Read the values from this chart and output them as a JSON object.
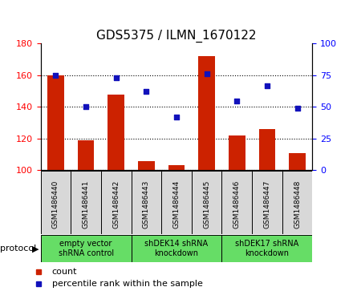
{
  "title": "GDS5375 / ILMN_1670122",
  "samples": [
    "GSM1486440",
    "GSM1486441",
    "GSM1486442",
    "GSM1486443",
    "GSM1486444",
    "GSM1486445",
    "GSM1486446",
    "GSM1486447",
    "GSM1486448"
  ],
  "counts": [
    160,
    119,
    148,
    106,
    103,
    172,
    122,
    126,
    111
  ],
  "percentiles": [
    75,
    50,
    73,
    62,
    42,
    76,
    55,
    67,
    49
  ],
  "ylim_left": [
    100,
    180
  ],
  "ylim_right": [
    0,
    100
  ],
  "yticks_left": [
    100,
    120,
    140,
    160,
    180
  ],
  "yticks_right": [
    0,
    25,
    50,
    75,
    100
  ],
  "groups": [
    {
      "label": "empty vector\nshRNA control",
      "start": 0,
      "end": 3
    },
    {
      "label": "shDEK14 shRNA\nknockdown",
      "start": 3,
      "end": 6
    },
    {
      "label": "shDEK17 shRNA\nknockdown",
      "start": 6,
      "end": 9
    }
  ],
  "bar_color": "#CC2200",
  "dot_color": "#1111BB",
  "bar_width": 0.55,
  "protocol_label": "protocol",
  "legend_count": "count",
  "legend_percentile": "percentile rank within the sample",
  "cell_bg": "#D8D8D8",
  "proto_bg": "#66DD66",
  "title_fontsize": 11
}
